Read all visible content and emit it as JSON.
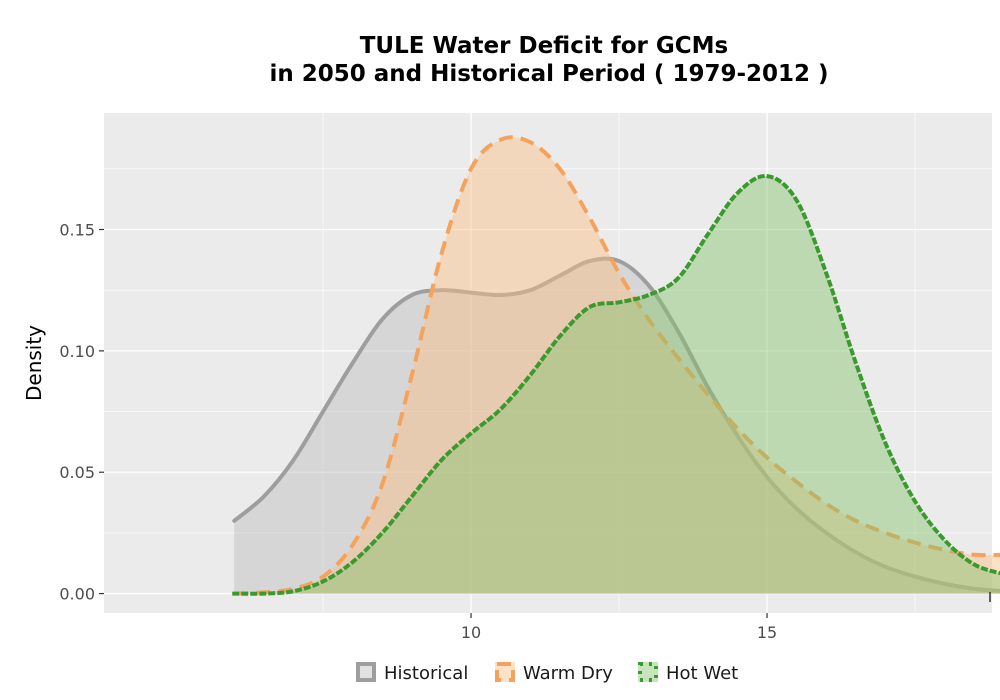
{
  "chart_data": {
    "type": "area",
    "title_lines": [
      "TULE  Water Deficit for GCMs",
      "in 2050 and Historical Period ( 1979-2012 )"
    ],
    "xlabel": "",
    "ylabel": "Density",
    "xlim": [
      3.8,
      18.8
    ],
    "ylim": [
      -0.008,
      0.198
    ],
    "x_ticks": [
      10,
      15
    ],
    "y_ticks": [
      0.0,
      0.05,
      0.1,
      0.15
    ],
    "y_tick_labels": [
      "0.00",
      "0.05",
      "0.10",
      "0.15"
    ],
    "grid": true,
    "legend_position": "bottom",
    "series": [
      {
        "name": "Historical",
        "fill": "#bdbdbd",
        "line": "#9e9e9e",
        "dash": "solid",
        "x": [
          6.0,
          6.5,
          7.0,
          7.5,
          8.0,
          8.5,
          9.0,
          9.5,
          10.0,
          10.5,
          11.0,
          11.5,
          12.0,
          12.5,
          13.0,
          13.5,
          14.0,
          14.5,
          15.0,
          15.5,
          16.0,
          16.5,
          17.0,
          17.5,
          18.0,
          18.5,
          19.0
        ],
        "y": [
          0.03,
          0.04,
          0.055,
          0.075,
          0.095,
          0.113,
          0.123,
          0.125,
          0.124,
          0.123,
          0.125,
          0.131,
          0.137,
          0.137,
          0.127,
          0.108,
          0.085,
          0.065,
          0.048,
          0.035,
          0.025,
          0.017,
          0.011,
          0.007,
          0.004,
          0.002,
          0.001
        ]
      },
      {
        "name": "Warm Dry",
        "fill": "#fdbf86",
        "line": "#f5a35c",
        "dash": "dashed",
        "x": [
          6.0,
          6.5,
          7.0,
          7.5,
          8.0,
          8.5,
          9.0,
          9.5,
          10.0,
          10.5,
          11.0,
          11.5,
          12.0,
          12.5,
          13.0,
          13.5,
          14.0,
          14.5,
          15.0,
          15.5,
          16.0,
          16.5,
          17.0,
          17.5,
          18.0,
          18.5,
          19.0
        ],
        "y": [
          0.0,
          0.0005,
          0.002,
          0.007,
          0.02,
          0.045,
          0.09,
          0.14,
          0.175,
          0.187,
          0.186,
          0.175,
          0.155,
          0.132,
          0.113,
          0.097,
          0.082,
          0.068,
          0.056,
          0.046,
          0.037,
          0.03,
          0.025,
          0.021,
          0.018,
          0.016,
          0.016
        ]
      },
      {
        "name": "Hot Wet",
        "fill": "#86c36d",
        "line": "#3a9a2e",
        "dash": "dotted",
        "x": [
          6.0,
          6.5,
          7.0,
          7.5,
          8.0,
          8.5,
          9.0,
          9.5,
          10.0,
          10.5,
          11.0,
          11.5,
          12.0,
          12.5,
          13.0,
          13.5,
          14.0,
          14.5,
          15.0,
          15.5,
          16.0,
          16.5,
          17.0,
          17.5,
          18.0,
          18.5,
          19.0
        ],
        "y": [
          0.0,
          0.0,
          0.001,
          0.005,
          0.013,
          0.025,
          0.04,
          0.055,
          0.066,
          0.076,
          0.09,
          0.106,
          0.118,
          0.12,
          0.123,
          0.13,
          0.148,
          0.165,
          0.172,
          0.162,
          0.132,
          0.095,
          0.062,
          0.038,
          0.022,
          0.012,
          0.008
        ]
      }
    ]
  }
}
